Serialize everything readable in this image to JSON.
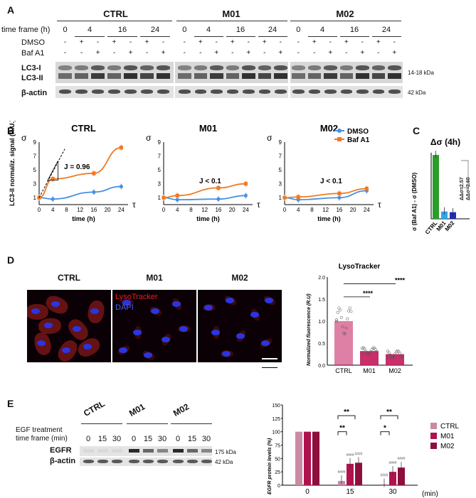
{
  "panels": {
    "A": {
      "label": "A",
      "groups": [
        "CTRL",
        "M01",
        "M02"
      ],
      "time_label": "time frame (h)",
      "dmso_label": "DMSO",
      "baf_label": "Baf A1",
      "times": [
        "0",
        "4",
        "16",
        "24"
      ],
      "dmso_row": [
        "-",
        "+",
        "-",
        "+",
        "-",
        "+",
        "-"
      ],
      "baf_row": [
        "-",
        "-",
        "+",
        "-",
        "+",
        "-",
        "+"
      ],
      "lc3_label_1": "LC3-I",
      "lc3_label_2": "LC3-II",
      "actin_label": "β-actin",
      "kda_lc3": "14-18 kDa",
      "kda_actin": "42 kDa"
    },
    "B": {
      "label": "B",
      "ylabel": "LC3-II normaliz. signal (R.U.)",
      "xlabel": "time (h)",
      "sigma": "σ",
      "tau": "τ",
      "legend": [
        "DMSO",
        "Baf A1"
      ],
      "plots": [
        {
          "title": "CTRL",
          "annotation": "J = 0.96"
        },
        {
          "title": "M01",
          "annotation": "J < 0.1"
        },
        {
          "title": "M02",
          "annotation": "J < 0.1"
        }
      ]
    },
    "C": {
      "label": "C",
      "title": "Δσ (4h)",
      "ylabel": "σ (Baf A1) - σ (DMSO)",
      "cats": [
        "CTRL",
        "M01",
        "M02"
      ],
      "anno1": "ΔΔσ=2.57",
      "anno2": "ΔΔσ=2.60"
    },
    "D": {
      "label": "D",
      "images": [
        "CTRL",
        "M01",
        "M02"
      ],
      "stain1": "LysoTracker",
      "stain2": "DAPI",
      "chart_title": "LysoTracker",
      "ylabel": "Normalized fluorescence (R.U)",
      "sig": "****"
    },
    "E": {
      "label": "E",
      "groups": [
        "CTRL",
        "M01",
        "M02"
      ],
      "treat_label": "EGF treatment",
      "time_label": "time frame (min)",
      "times": [
        "0",
        "15",
        "30"
      ],
      "egfr_label": "EGFR",
      "actin_label": "β-actin",
      "kda_egfr": "175 kDa",
      "kda_actin": "42 kDa",
      "ylabel": "EGFR protein levels (%)",
      "unit": "(min)",
      "legend": [
        "CTRL",
        "M01",
        "M02"
      ],
      "sig": [
        "**",
        "**",
        "**",
        "*"
      ],
      "hash": "####"
    }
  },
  "chart_data": [
    {
      "type": "line",
      "title": "CTRL",
      "x": [
        0,
        4,
        16,
        24
      ],
      "xlabel": "time (h)",
      "ylabel": "LC3-II normaliz. signal (R.U.)",
      "ylim": [
        0,
        9
      ],
      "series": [
        {
          "name": "DMSO",
          "values": [
            1.0,
            0.8,
            1.8,
            2.6
          ]
        },
        {
          "name": "Baf A1",
          "values": [
            1.0,
            3.7,
            4.5,
            8.2
          ]
        }
      ]
    },
    {
      "type": "line",
      "title": "M01",
      "x": [
        0,
        4,
        16,
        24
      ],
      "ylim": [
        0,
        9
      ],
      "series": [
        {
          "name": "DMSO",
          "values": [
            1.0,
            0.7,
            0.8,
            1.3
          ]
        },
        {
          "name": "Baf A1",
          "values": [
            1.0,
            1.3,
            2.4,
            3.0
          ]
        }
      ]
    },
    {
      "type": "line",
      "title": "M02",
      "x": [
        0,
        4,
        16,
        24
      ],
      "ylim": [
        0,
        9
      ],
      "series": [
        {
          "name": "DMSO",
          "values": [
            1.0,
            0.7,
            1.0,
            2.0
          ]
        },
        {
          "name": "Baf A1",
          "values": [
            1.0,
            1.1,
            1.6,
            2.3
          ]
        }
      ]
    },
    {
      "type": "bar",
      "title": "Δσ (4h)",
      "categories": [
        "CTRL",
        "M01",
        "M02"
      ],
      "values": [
        2.9,
        0.33,
        0.3
      ],
      "colors": [
        "#2a9d2a",
        "#2ea6e8",
        "#1c2fb8"
      ]
    },
    {
      "type": "bar",
      "title": "LysoTracker",
      "categories": [
        "CTRL",
        "M01",
        "M02"
      ],
      "values": [
        1.0,
        0.32,
        0.25
      ],
      "ylim": [
        0,
        2.0
      ],
      "yticks": [
        "0.0",
        "0.5",
        "1.0",
        "1.5",
        "2.0"
      ]
    },
    {
      "type": "bar",
      "title": "",
      "categories": [
        "0",
        "15",
        "30"
      ],
      "ylim": [
        0,
        150
      ],
      "yticks": [
        "0",
        "25",
        "50",
        "75",
        "100",
        "125",
        "150"
      ],
      "series": [
        {
          "name": "CTRL",
          "values": [
            100,
            8,
            2
          ]
        },
        {
          "name": "M01",
          "values": [
            100,
            40,
            25
          ]
        },
        {
          "name": "M02",
          "values": [
            100,
            42,
            33
          ]
        }
      ]
    }
  ],
  "colors": {
    "dmso": "#4a90e2",
    "baf": "#f07a24",
    "ctrl_pink": "#c98aa4",
    "m01": "#b0124e",
    "m02": "#8c0f3d",
    "lyso_bar": "#c2185b"
  }
}
